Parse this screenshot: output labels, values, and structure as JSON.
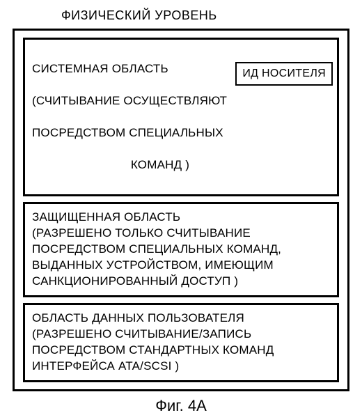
{
  "colors": {
    "background": "#ffffff",
    "border": "#000000",
    "text": "#000000"
  },
  "layout": {
    "header_fontsize": 18,
    "region_fontsize": 17,
    "caption_fontsize": 22,
    "border_width_outer": 3,
    "border_width_inner": 3
  },
  "header": {
    "title": "ФИЗИЧЕСКИЙ УРОВЕНЬ"
  },
  "regions": {
    "system": {
      "line1": "СИСТЕМНАЯ  ОБЛАСТЬ",
      "line2": "(СЧИТЫВАНИЕ ОСУЩЕСТВЛЯЮТ",
      "line3": "ПОСРЕДСТВОМ СПЕЦИАЛЬНЫХ",
      "line4": "КОМАНД )",
      "id_label": "ИД НОСИТЕЛЯ"
    },
    "protected": {
      "text": "ЗАЩИЩЕННАЯ ОБЛАСТЬ\n(РАЗРЕШЕНО ТОЛЬКО СЧИТЫВАНИЕ\nПОСРЕДСТВОМ СПЕЦИАЛЬНЫХ КОМАНД,\nВЫДАННЫХ УСТРОЙСТВОМ, ИМЕЮЩИМ\nСАНКЦИОНИРОВАННЫЙ ДОСТУП )"
    },
    "user": {
      "text": "ОБЛАСТЬ ДАННЫХ ПОЛЬЗОВАТЕЛЯ\n(РАЗРЕШЕНО СЧИТЫВАНИЕ/ЗАПИСЬ\nПОСРЕДСТВОМ СТАНДАРТНЫХ КОМАНД\nИНТЕРФЕЙСА  ATA/SCSI )"
    }
  },
  "caption": "Фиг. 4А"
}
